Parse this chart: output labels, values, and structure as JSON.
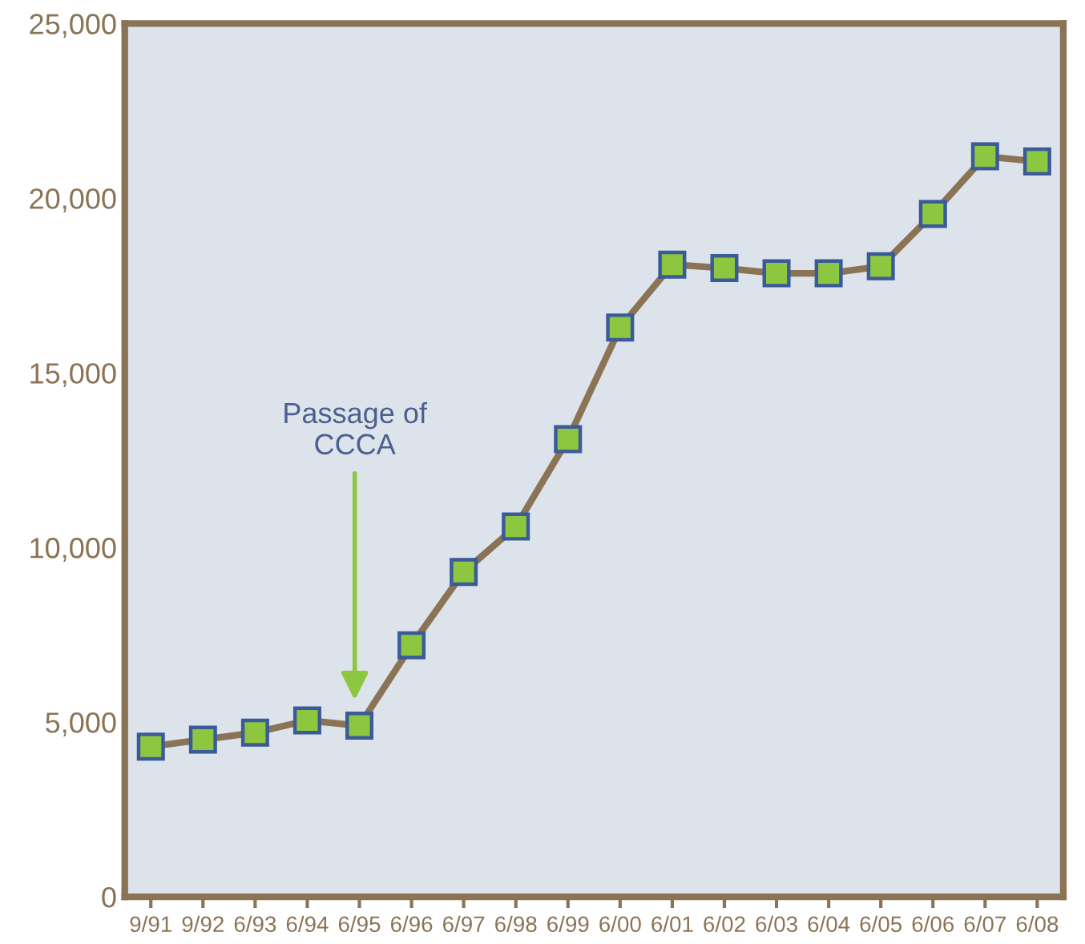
{
  "chart_data": {
    "type": "line",
    "categories": [
      "9/91",
      "9/92",
      "6/93",
      "6/94",
      "6/95",
      "6/96",
      "6/97",
      "6/98",
      "6/99",
      "6/00",
      "6/01",
      "6/02",
      "6/03",
      "6/04",
      "6/05",
      "6/06",
      "6/07",
      "6/08"
    ],
    "series": [
      {
        "color": "#8b7355",
        "values": [
          4300,
          4500,
          4700,
          5050,
          4900,
          7200,
          9300,
          10600,
          13100,
          16300,
          18100,
          18000,
          17850,
          17850,
          18050,
          19550,
          21200,
          21050
        ]
      }
    ],
    "marker": "square",
    "line_style": "solid",
    "grid": false,
    "legend": false,
    "ylim": [
      0,
      25000
    ],
    "yticks": [
      0,
      {
        "value": 5000,
        "label": "5,000"
      },
      {
        "value": 10000,
        "label": "10,000"
      },
      {
        "value": 15000,
        "label": "15,000"
      },
      {
        "value": 20000,
        "label": "20,000"
      },
      {
        "value": 25000,
        "label": "25,000"
      }
    ],
    "annotations": [
      "Passage of\nCCCA"
    ]
  }
}
